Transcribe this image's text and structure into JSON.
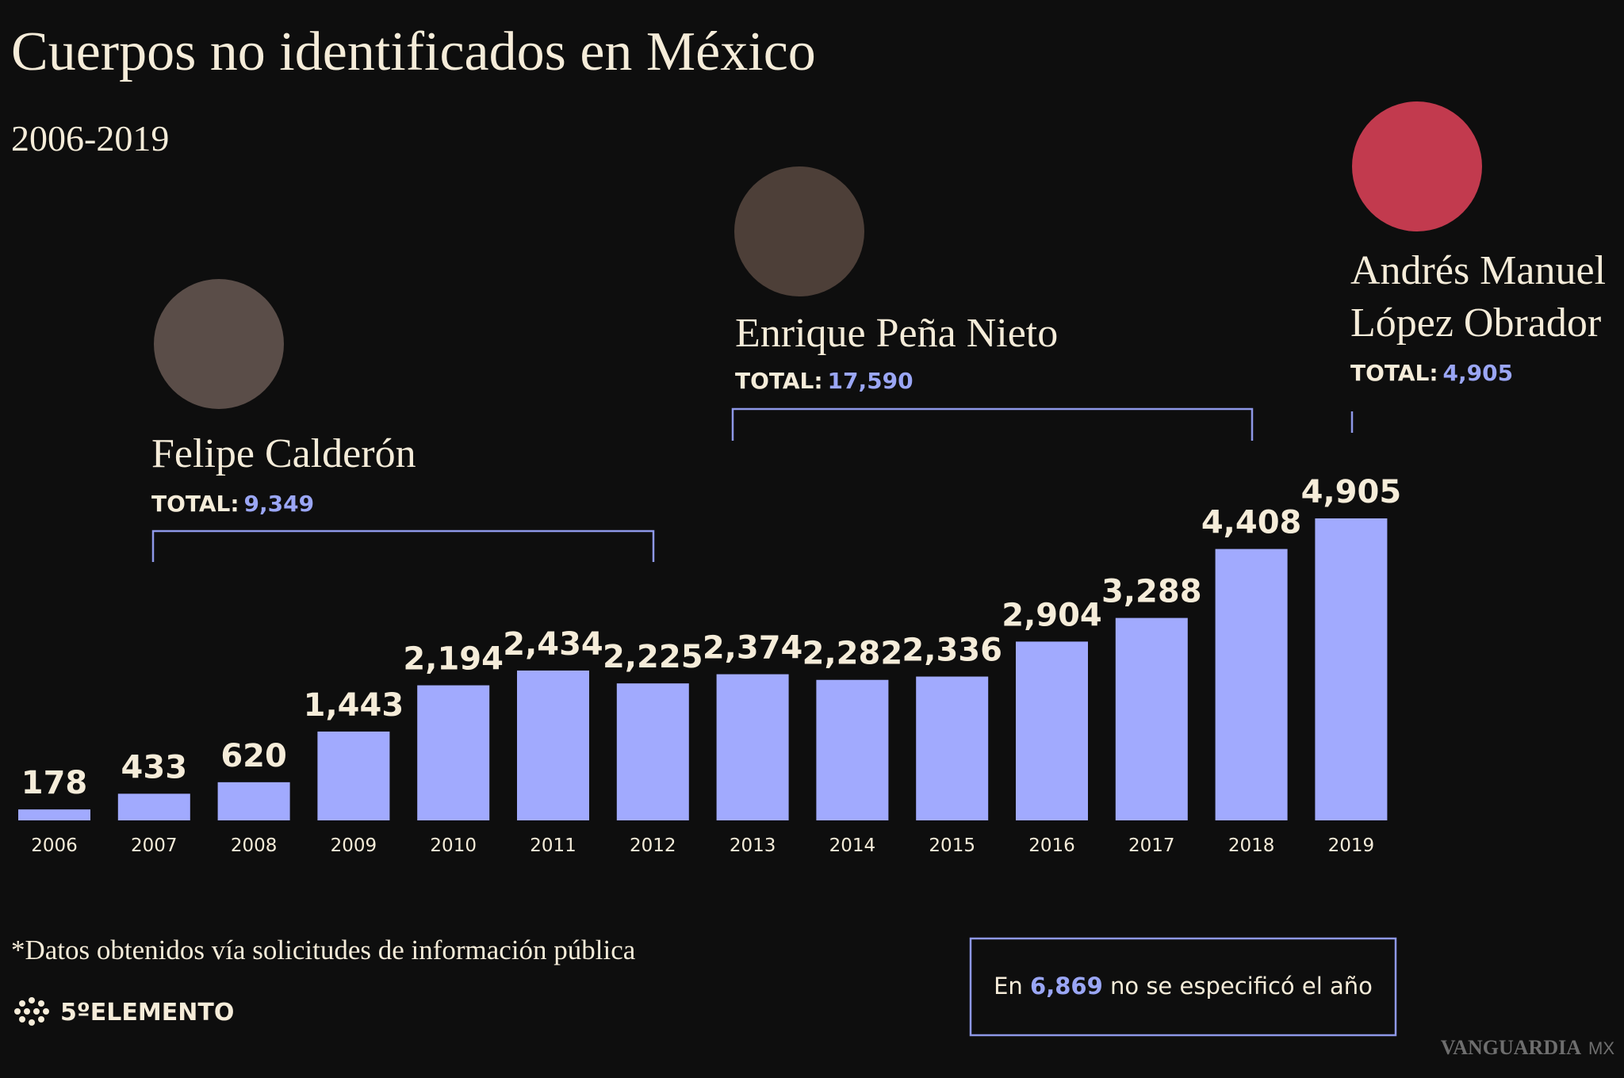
{
  "chart_data": {
    "type": "bar",
    "title": "Cuerpos no identificados en México",
    "subtitle": "2006-2019",
    "categories": [
      "2006",
      "2007",
      "2008",
      "2009",
      "2010",
      "2011",
      "2012",
      "2013",
      "2014",
      "2015",
      "2016",
      "2017",
      "2018",
      "2019"
    ],
    "values": [
      178,
      433,
      620,
      1443,
      2194,
      2434,
      2225,
      2374,
      2282,
      2336,
      2904,
      3288,
      4408,
      4905
    ],
    "value_labels": [
      "178",
      "433",
      "620",
      "1,443",
      "2,194",
      "2,434",
      "2,225",
      "2,374",
      "2,282",
      "2,336",
      "2,904",
      "3,288",
      "4,408",
      "4,905"
    ],
    "color": "#a1aafe",
    "annotations": [
      {
        "name": [
          "Felipe Calderón"
        ],
        "total_label": "TOTAL:",
        "total": {
          "value": 9349,
          "label": "9,349"
        }
      },
      {
        "name": [
          "Enrique Peña Nieto"
        ],
        "total_label": "TOTAL:",
        "total": {
          "value": 17590,
          "label": "17,590"
        }
      },
      {
        "name": [
          "Andrés Manuel",
          "López Obrador"
        ],
        "total_label": "TOTAL:",
        "total": {
          "value": 4905,
          "label": "4,905"
        }
      }
    ],
    "footnote": "*Datos obtenidos vía solicitudes de información pública",
    "unspecified": {
      "prefix": "En",
      "count": {
        "value": 6869,
        "label": "6,869"
      },
      "suffix": "no se especificó el año"
    },
    "logo": "5ºELEMENTO",
    "source": "VANGUARDIA",
    "source_suffix": "MX"
  }
}
